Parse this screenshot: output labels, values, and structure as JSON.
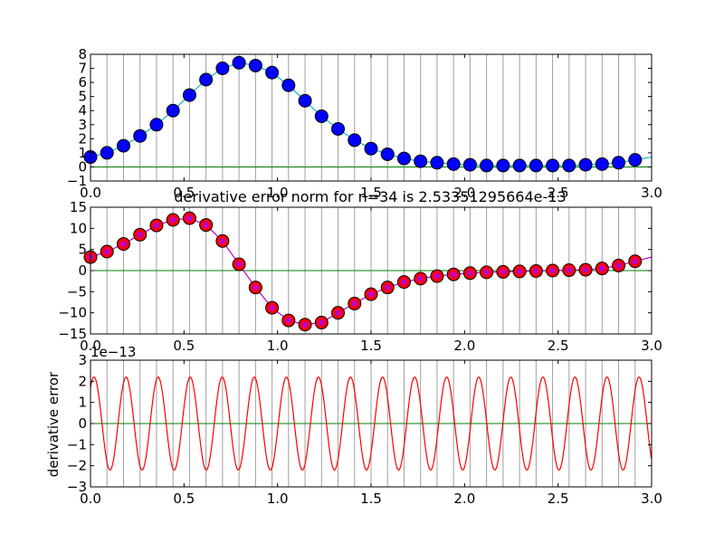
{
  "chart_data": [
    {
      "type": "line",
      "title": "",
      "xlabel": "",
      "ylabel": "",
      "xlim": [
        0,
        3
      ],
      "ylim": [
        -1,
        8
      ],
      "xticks": [
        "0.0",
        "0.5",
        "1.0",
        "1.5",
        "2.0",
        "2.5",
        "3.0"
      ],
      "yticks": [
        "−1",
        "0",
        "1",
        "2",
        "3",
        "4",
        "5",
        "6",
        "7",
        "8"
      ],
      "vertical_gridlines": true,
      "zero_line": true,
      "colors": {
        "curve": "#00bfbf",
        "markers": "#0000ff",
        "zero_line": "#008000",
        "grid": "#a0a0a0"
      },
      "x": [
        0.0,
        0.0882,
        0.1765,
        0.2647,
        0.3529,
        0.4412,
        0.5294,
        0.6176,
        0.7059,
        0.7941,
        0.8824,
        0.9706,
        1.0588,
        1.1471,
        1.2353,
        1.3235,
        1.4118,
        1.5,
        1.5882,
        1.6765,
        1.7647,
        1.8529,
        1.9412,
        2.0294,
        2.1176,
        2.2059,
        2.2941,
        2.3824,
        2.4706,
        2.5588,
        2.6471,
        2.7353,
        2.8235,
        2.9118
      ],
      "series": [
        {
          "values": [
            0.7,
            1.0,
            1.5,
            2.2,
            3.0,
            4.0,
            5.1,
            6.2,
            7.0,
            7.4,
            7.2,
            6.7,
            5.8,
            4.7,
            3.6,
            2.7,
            1.9,
            1.3,
            0.9,
            0.6,
            0.4,
            0.3,
            0.2,
            0.15,
            0.1,
            0.1,
            0.1,
            0.1,
            0.1,
            0.1,
            0.15,
            0.2,
            0.3,
            0.5
          ]
        }
      ]
    },
    {
      "type": "line",
      "title": "derivative error norm for n=34 is 2.53351295664e-13",
      "xlabel": "",
      "ylabel": "",
      "xlim": [
        0,
        3
      ],
      "ylim": [
        -15,
        15
      ],
      "xticks": [
        "0.0",
        "0.5",
        "1.0",
        "1.5",
        "2.0",
        "2.5",
        "3.0"
      ],
      "yticks": [
        "−15",
        "−10",
        "−5",
        "0",
        "5",
        "10",
        "15"
      ],
      "vertical_gridlines": true,
      "zero_line": true,
      "colors": {
        "curve": "#bf00bf",
        "markers": "#ff0000",
        "zero_line": "#008000",
        "grid": "#a0a0a0"
      },
      "x": [
        0.0,
        0.0882,
        0.1765,
        0.2647,
        0.3529,
        0.4412,
        0.5294,
        0.6176,
        0.7059,
        0.7941,
        0.8824,
        0.9706,
        1.0588,
        1.1471,
        1.2353,
        1.3235,
        1.4118,
        1.5,
        1.5882,
        1.6765,
        1.7647,
        1.8529,
        1.9412,
        2.0294,
        2.1176,
        2.2059,
        2.2941,
        2.3824,
        2.4706,
        2.5588,
        2.6471,
        2.7353,
        2.8235,
        2.9118
      ],
      "series": [
        {
          "values": [
            3.2,
            4.5,
            6.3,
            8.5,
            10.7,
            12.0,
            12.4,
            10.8,
            7.0,
            1.5,
            -4.0,
            -8.8,
            -11.8,
            -12.8,
            -12.3,
            -10.0,
            -7.8,
            -5.6,
            -4.0,
            -2.7,
            -1.9,
            -1.3,
            -0.9,
            -0.6,
            -0.4,
            -0.3,
            -0.2,
            -0.1,
            0.0,
            0.1,
            0.2,
            0.5,
            1.2,
            2.2
          ]
        }
      ]
    },
    {
      "type": "line",
      "title": "",
      "xlabel": "",
      "ylabel": "derivative error",
      "offset_text": "1e−13",
      "xlim": [
        0,
        3
      ],
      "ylim": [
        -3,
        3
      ],
      "xticks": [
        "0.0",
        "0.5",
        "1.0",
        "1.5",
        "2.0",
        "2.5",
        "3.0"
      ],
      "yticks": [
        "−3",
        "−2",
        "−1",
        "0",
        "1",
        "2",
        "3"
      ],
      "vertical_gridlines": true,
      "zero_line": true,
      "colors": {
        "curve": "#ff0000",
        "zero_line": "#008000",
        "grid": "#a0a0a0"
      },
      "oscillation": {
        "cycles": 17.5,
        "amplitude": 2.2,
        "y_at_start": 1.7
      }
    }
  ]
}
